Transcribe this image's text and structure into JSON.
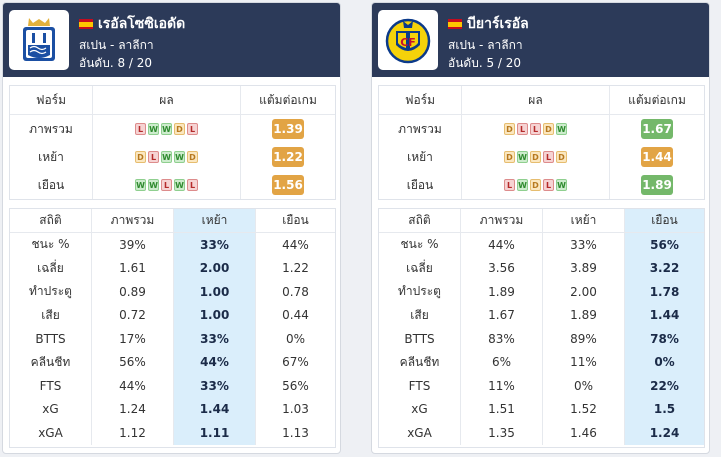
{
  "colors": {
    "header_bg": "#2c3a59",
    "highlight": "#daeefb",
    "ppg_green": "#74b86a",
    "ppg_orange": "#e2a445"
  },
  "teams": [
    {
      "name": "เรอัลโซซิเอดัด",
      "flag": "spain-flag",
      "league": "สเปน - ลาลีกา",
      "rank": "อันดับ. 8 / 20",
      "logo": "real-sociedad-crest",
      "form_headers": [
        "ฟอร์ม",
        "ผล",
        "แต้มต่อเกม"
      ],
      "form_rows": [
        {
          "label": "ภาพรวม",
          "results": [
            "L",
            "W",
            "W",
            "D",
            "L"
          ],
          "ppg": "1.39",
          "ppg_color": "orange"
        },
        {
          "label": "เหย้า",
          "results": [
            "D",
            "L",
            "W",
            "W",
            "D"
          ],
          "ppg": "1.22",
          "ppg_color": "orange"
        },
        {
          "label": "เยือน",
          "results": [
            "W",
            "W",
            "L",
            "W",
            "L"
          ],
          "ppg": "1.56",
          "ppg_color": "orange"
        }
      ],
      "stat_headers": [
        "สถิติ",
        "ภาพรวม",
        "เหย้า",
        "เยือน"
      ],
      "highlight_col": 2,
      "stat_rows": [
        [
          "ชนะ %",
          "39%",
          "33%",
          "44%"
        ],
        [
          "เฉลี่ย",
          "1.61",
          "2.00",
          "1.22"
        ],
        [
          "ทำประตู",
          "0.89",
          "1.00",
          "0.78"
        ],
        [
          "เสีย",
          "0.72",
          "1.00",
          "0.44"
        ],
        [
          "BTTS",
          "17%",
          "33%",
          "0%"
        ],
        [
          "คลีนชีท",
          "56%",
          "44%",
          "67%"
        ],
        [
          "FTS",
          "44%",
          "33%",
          "56%"
        ],
        [
          "xG",
          "1.24",
          "1.44",
          "1.03"
        ],
        [
          "xGA",
          "1.12",
          "1.11",
          "1.13"
        ]
      ]
    },
    {
      "name": "บียาร์เรอัล",
      "flag": "spain-flag",
      "league": "สเปน - ลาลีกา",
      "rank": "อันดับ. 5 / 20",
      "logo": "villarreal-crest",
      "form_headers": [
        "ฟอร์ม",
        "ผล",
        "แต้มต่อเกม"
      ],
      "form_rows": [
        {
          "label": "ภาพรวม",
          "results": [
            "D",
            "L",
            "L",
            "D",
            "W"
          ],
          "ppg": "1.67",
          "ppg_color": "green"
        },
        {
          "label": "เหย้า",
          "results": [
            "D",
            "W",
            "D",
            "L",
            "D"
          ],
          "ppg": "1.44",
          "ppg_color": "orange"
        },
        {
          "label": "เยือน",
          "results": [
            "L",
            "W",
            "D",
            "L",
            "W"
          ],
          "ppg": "1.89",
          "ppg_color": "green"
        }
      ],
      "stat_headers": [
        "สถิติ",
        "ภาพรวม",
        "เหย้า",
        "เยือน"
      ],
      "highlight_col": 3,
      "stat_rows": [
        [
          "ชนะ %",
          "44%",
          "33%",
          "56%"
        ],
        [
          "เฉลี่ย",
          "3.56",
          "3.89",
          "3.22"
        ],
        [
          "ทำประตู",
          "1.89",
          "2.00",
          "1.78"
        ],
        [
          "เสีย",
          "1.67",
          "1.89",
          "1.44"
        ],
        [
          "BTTS",
          "83%",
          "89%",
          "78%"
        ],
        [
          "คลีนชีท",
          "6%",
          "11%",
          "0%"
        ],
        [
          "FTS",
          "11%",
          "0%",
          "22%"
        ],
        [
          "xG",
          "1.51",
          "1.52",
          "1.5"
        ],
        [
          "xGA",
          "1.35",
          "1.46",
          "1.24"
        ]
      ]
    }
  ]
}
